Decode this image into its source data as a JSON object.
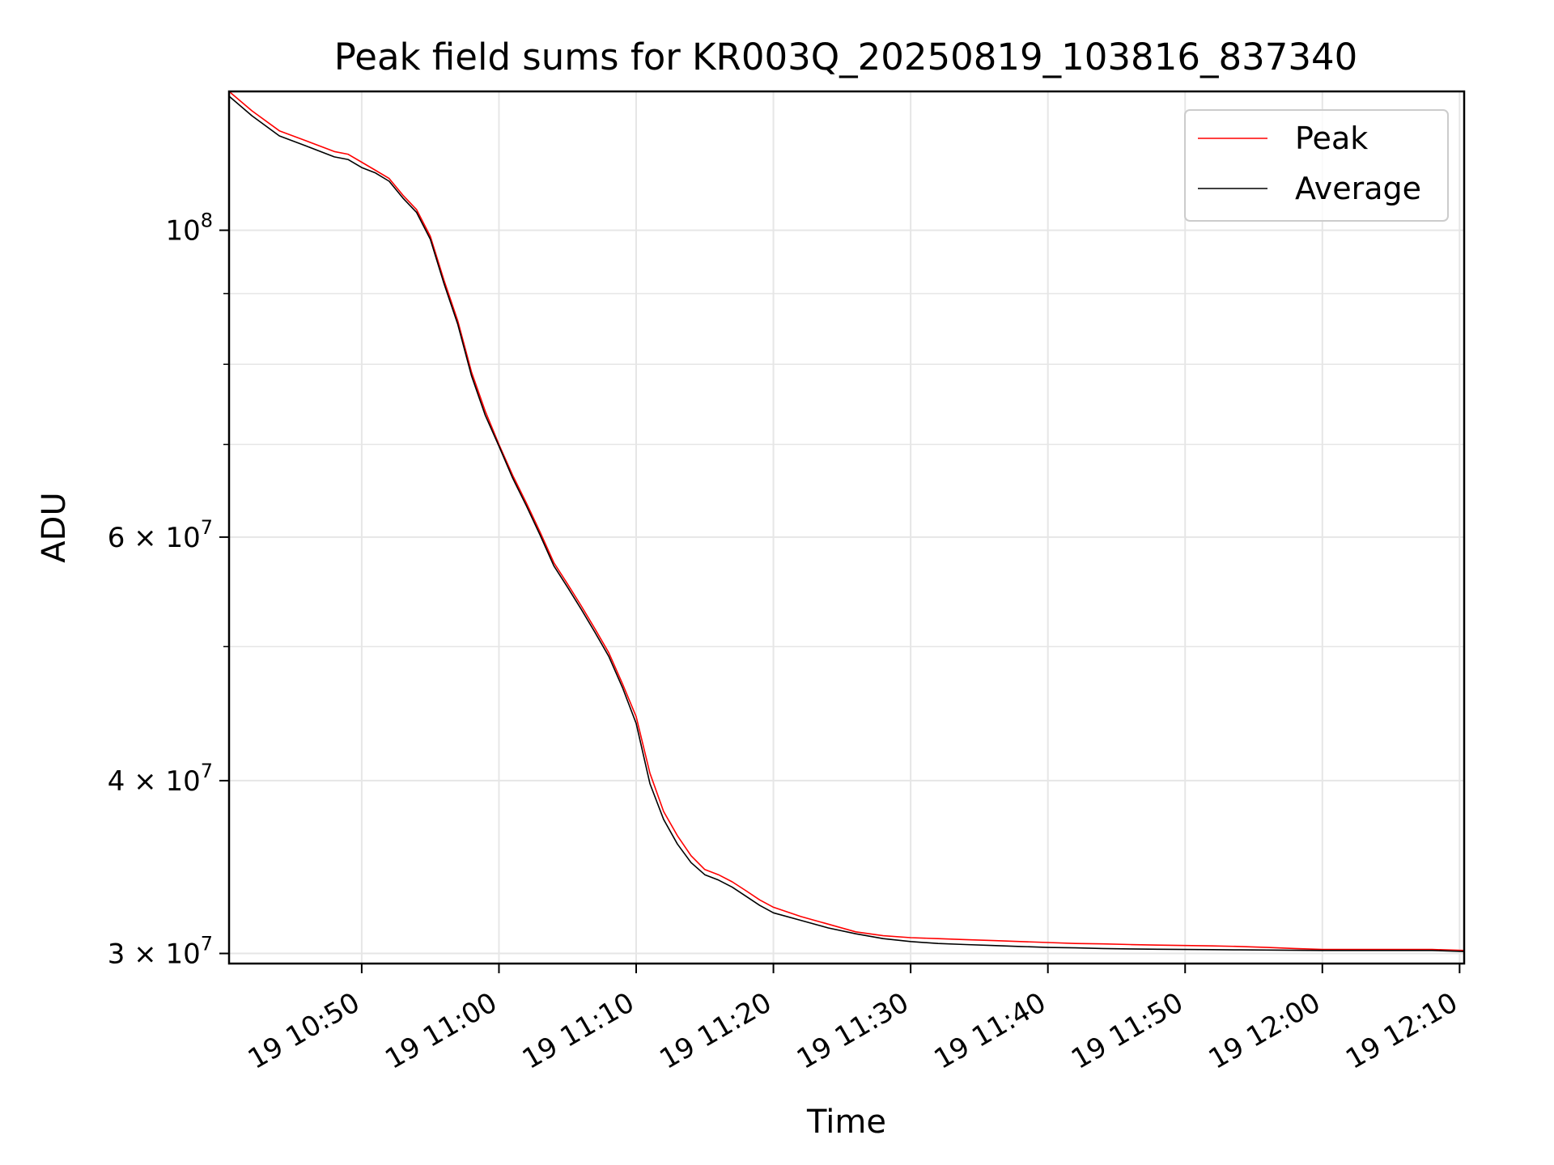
{
  "chart_data": {
    "type": "line",
    "title": "Peak field sums for KR003Q_20250819_103816_837340",
    "xlabel": "Time",
    "ylabel": "ADU",
    "yscale": "log",
    "ylim": [
      29500000,
      126000000
    ],
    "xlim": [
      "19 10:40:20",
      "19 12:10:20"
    ],
    "grid": true,
    "legend_position": "top-right",
    "x_ticks": [
      "19 10:50",
      "19 11:00",
      "19 11:10",
      "19 11:20",
      "19 11:30",
      "19 11:40",
      "19 11:50",
      "19 12:00",
      "19 12:10"
    ],
    "y_ticks": [
      {
        "value": 30000000,
        "mantissa": "3",
        "exponent": "7"
      },
      {
        "value": 40000000,
        "mantissa": "4",
        "exponent": "7"
      },
      {
        "value": 60000000,
        "mantissa": "6",
        "exponent": "7"
      },
      {
        "value": 100000000,
        "mantissa": "",
        "exponent": "8"
      }
    ],
    "y_minor_ticks": [
      50000000,
      70000000,
      80000000,
      90000000
    ],
    "x": [
      "19 10:40:20",
      "19 10:42",
      "19 10:44",
      "19 10:46",
      "19 10:48",
      "19 10:49",
      "19 10:50",
      "19 10:51",
      "19 10:52",
      "19 10:53",
      "19 10:54",
      "19 10:55",
      "19 10:56",
      "19 10:57",
      "19 10:58",
      "19 10:59",
      "19 11:00",
      "19 11:01",
      "19 11:02",
      "19 11:03",
      "19 11:04",
      "19 11:05",
      "19 11:06",
      "19 11:07",
      "19 11:08",
      "19 11:09",
      "19 11:10",
      "19 11:11",
      "19 11:12",
      "19 11:13",
      "19 11:14",
      "19 11:15",
      "19 11:16",
      "19 11:17",
      "19 11:18",
      "19 11:19",
      "19 11:20",
      "19 11:22",
      "19 11:24",
      "19 11:26",
      "19 11:28",
      "19 11:30",
      "19 11:32",
      "19 11:34",
      "19 11:36",
      "19 11:38",
      "19 11:40",
      "19 11:42",
      "19 11:44",
      "19 11:46",
      "19 11:48",
      "19 11:50",
      "19 11:52",
      "19 11:54",
      "19 11:56",
      "19 11:58",
      "19 12:00",
      "19 12:02",
      "19 12:04",
      "19 12:06",
      "19 12:08",
      "19 12:10:20"
    ],
    "series": [
      {
        "name": "Peak",
        "color": "#ff0000",
        "values": [
          126000000,
          122000000,
          118000000,
          116000000,
          114000000,
          113500000,
          112000000,
          110500000,
          109000000,
          106000000,
          103500000,
          99000000,
          92000000,
          86000000,
          79000000,
          74000000,
          70000000,
          66500000,
          63500000,
          60500000,
          57500000,
          55500000,
          53500000,
          51500000,
          49500000,
          47000000,
          44500000,
          40500000,
          38000000,
          36500000,
          35300000,
          34500000,
          34200000,
          33800000,
          33300000,
          32800000,
          32400000,
          31900000,
          31500000,
          31100000,
          30900000,
          30800000,
          30750000,
          30700000,
          30650000,
          30600000,
          30550000,
          30500000,
          30480000,
          30450000,
          30420000,
          30400000,
          30380000,
          30350000,
          30300000,
          30250000,
          30200000,
          30200000,
          30200000,
          30200000,
          30200000,
          30150000
        ]
      },
      {
        "name": "Average",
        "color": "#000000",
        "values": [
          125000000,
          121000000,
          117000000,
          115000000,
          113000000,
          112500000,
          111000000,
          110000000,
          108500000,
          105500000,
          103000000,
          98500000,
          91500000,
          85500000,
          78500000,
          73500000,
          69800000,
          66200000,
          63200000,
          60200000,
          57200000,
          55200000,
          53200000,
          51200000,
          49200000,
          46700000,
          44000000,
          39800000,
          37500000,
          36000000,
          34900000,
          34200000,
          33900000,
          33500000,
          33000000,
          32500000,
          32100000,
          31700000,
          31300000,
          31000000,
          30750000,
          30600000,
          30500000,
          30450000,
          30400000,
          30350000,
          30300000,
          30280000,
          30250000,
          30230000,
          30210000,
          30200000,
          30190000,
          30180000,
          30170000,
          30160000,
          30150000,
          30150000,
          30150000,
          30150000,
          30150000,
          30100000
        ]
      }
    ]
  }
}
